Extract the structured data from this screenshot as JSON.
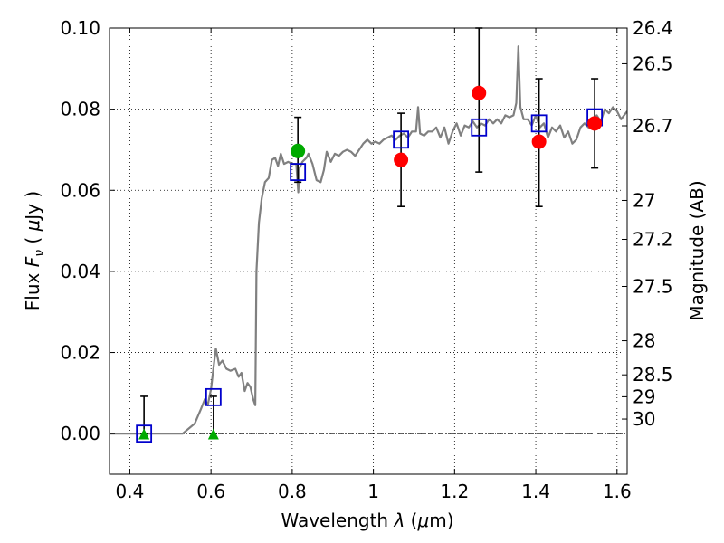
{
  "chart_data": {
    "type": "scatter",
    "x_axis": {
      "label_prefix": "Wavelength  ",
      "label_symbol": "λ",
      "label_suffix": " (",
      "label_mu": "μ",
      "label_unit": "m)",
      "range": [
        0.35,
        1.625
      ],
      "ticks": [
        0.4,
        0.6,
        0.8,
        1.0,
        1.2,
        1.4,
        1.6
      ],
      "tick_labels": [
        "0.4",
        "0.6",
        "0.8",
        "1",
        "1.2",
        "1.4",
        "1.6"
      ]
    },
    "y_axis": {
      "label_prefix": "Flux  ",
      "label_symbol": "F",
      "label_sub": "ν",
      "label_paren_open": "  (  ",
      "label_mu": "μ",
      "label_unit": "Jy )",
      "range": [
        -0.01,
        0.1
      ],
      "ticks": [
        0.0,
        0.02,
        0.04,
        0.06,
        0.08,
        0.1
      ],
      "tick_labels": [
        "0.00",
        "0.02",
        "0.04",
        "0.06",
        "0.08",
        "0.10"
      ]
    },
    "y2_axis": {
      "label": "Magnitude (AB)",
      "ticks": [
        {
          "label": "26.4",
          "flux": 0.1
        },
        {
          "label": "26.5",
          "flux": 0.0912
        },
        {
          "label": "26.7",
          "flux": 0.0759
        },
        {
          "label": "27",
          "flux": 0.0575
        },
        {
          "label": "27.2",
          "flux": 0.0479
        },
        {
          "label": "27.5",
          "flux": 0.0363
        },
        {
          "label": "28",
          "flux": 0.0229
        },
        {
          "label": "28.5",
          "flux": 0.0145
        },
        {
          "label": "29",
          "flux": 0.0091
        },
        {
          "label": "30",
          "flux": 0.0036
        }
      ]
    },
    "grid": true,
    "zero_line": true,
    "series": [
      {
        "kind": "spectrum",
        "color": "#808080",
        "points": [
          [
            0.35,
            0.0
          ],
          [
            0.52,
            0.0
          ],
          [
            0.53,
            0.0
          ],
          [
            0.56,
            0.0025
          ],
          [
            0.575,
            0.006
          ],
          [
            0.585,
            0.0085
          ],
          [
            0.592,
            0.007
          ],
          [
            0.597,
            0.0095
          ],
          [
            0.6,
            0.011
          ],
          [
            0.607,
            0.017
          ],
          [
            0.612,
            0.021
          ],
          [
            0.62,
            0.017
          ],
          [
            0.628,
            0.018
          ],
          [
            0.638,
            0.016
          ],
          [
            0.648,
            0.0155
          ],
          [
            0.66,
            0.016
          ],
          [
            0.668,
            0.014
          ],
          [
            0.675,
            0.015
          ],
          [
            0.683,
            0.0105
          ],
          [
            0.69,
            0.0125
          ],
          [
            0.697,
            0.0115
          ],
          [
            0.704,
            0.0085
          ],
          [
            0.709,
            0.007
          ],
          [
            0.712,
            0.04
          ],
          [
            0.718,
            0.052
          ],
          [
            0.725,
            0.058
          ],
          [
            0.733,
            0.062
          ],
          [
            0.742,
            0.063
          ],
          [
            0.75,
            0.0675
          ],
          [
            0.758,
            0.068
          ],
          [
            0.765,
            0.066
          ],
          [
            0.772,
            0.069
          ],
          [
            0.78,
            0.0665
          ],
          [
            0.79,
            0.067
          ],
          [
            0.8,
            0.0665
          ],
          [
            0.81,
            0.0665
          ],
          [
            0.815,
            0.0595
          ],
          [
            0.818,
            0.0655
          ],
          [
            0.825,
            0.067
          ],
          [
            0.835,
            0.068
          ],
          [
            0.84,
            0.069
          ],
          [
            0.85,
            0.0665
          ],
          [
            0.86,
            0.0625
          ],
          [
            0.87,
            0.062
          ],
          [
            0.878,
            0.065
          ],
          [
            0.885,
            0.0695
          ],
          [
            0.895,
            0.067
          ],
          [
            0.905,
            0.069
          ],
          [
            0.915,
            0.0685
          ],
          [
            0.925,
            0.0695
          ],
          [
            0.935,
            0.07
          ],
          [
            0.945,
            0.0695
          ],
          [
            0.955,
            0.0685
          ],
          [
            0.965,
            0.07
          ],
          [
            0.975,
            0.0715
          ],
          [
            0.985,
            0.0725
          ],
          [
            0.995,
            0.0715
          ],
          [
            1.005,
            0.072
          ],
          [
            1.015,
            0.0715
          ],
          [
            1.025,
            0.0725
          ],
          [
            1.035,
            0.073
          ],
          [
            1.045,
            0.0735
          ],
          [
            1.055,
            0.0725
          ],
          [
            1.065,
            0.0735
          ],
          [
            1.075,
            0.074
          ],
          [
            1.085,
            0.073
          ],
          [
            1.095,
            0.0745
          ],
          [
            1.105,
            0.0745
          ],
          [
            1.11,
            0.0805
          ],
          [
            1.115,
            0.074
          ],
          [
            1.125,
            0.0735
          ],
          [
            1.135,
            0.0745
          ],
          [
            1.145,
            0.0745
          ],
          [
            1.155,
            0.0755
          ],
          [
            1.165,
            0.073
          ],
          [
            1.175,
            0.0755
          ],
          [
            1.185,
            0.0715
          ],
          [
            1.195,
            0.0745
          ],
          [
            1.205,
            0.0765
          ],
          [
            1.215,
            0.0735
          ],
          [
            1.225,
            0.076
          ],
          [
            1.235,
            0.0755
          ],
          [
            1.245,
            0.077
          ],
          [
            1.255,
            0.0755
          ],
          [
            1.265,
            0.0765
          ],
          [
            1.275,
            0.076
          ],
          [
            1.285,
            0.0775
          ],
          [
            1.295,
            0.0765
          ],
          [
            1.305,
            0.0775
          ],
          [
            1.315,
            0.0765
          ],
          [
            1.325,
            0.0785
          ],
          [
            1.335,
            0.078
          ],
          [
            1.345,
            0.0785
          ],
          [
            1.352,
            0.0815
          ],
          [
            1.357,
            0.0955
          ],
          [
            1.362,
            0.0805
          ],
          [
            1.37,
            0.0775
          ],
          [
            1.38,
            0.0775
          ],
          [
            1.39,
            0.076
          ],
          [
            1.4,
            0.0785
          ],
          [
            1.41,
            0.0755
          ],
          [
            1.42,
            0.0765
          ],
          [
            1.43,
            0.073
          ],
          [
            1.44,
            0.0755
          ],
          [
            1.45,
            0.0745
          ],
          [
            1.46,
            0.076
          ],
          [
            1.47,
            0.073
          ],
          [
            1.48,
            0.0745
          ],
          [
            1.49,
            0.0715
          ],
          [
            1.5,
            0.0725
          ],
          [
            1.51,
            0.0755
          ],
          [
            1.52,
            0.0765
          ],
          [
            1.53,
            0.0755
          ],
          [
            1.54,
            0.077
          ],
          [
            1.55,
            0.0785
          ],
          [
            1.56,
            0.077
          ],
          [
            1.57,
            0.08
          ],
          [
            1.58,
            0.079
          ],
          [
            1.59,
            0.0805
          ],
          [
            1.6,
            0.0795
          ],
          [
            1.61,
            0.0775
          ],
          [
            1.625,
            0.0795
          ]
        ]
      },
      {
        "kind": "model-photometry",
        "marker": "open-square",
        "color": "#0000cc",
        "points": [
          [
            0.435,
            0.0
          ],
          [
            0.606,
            0.009
          ],
          [
            0.814,
            0.0645
          ],
          [
            1.068,
            0.0725
          ],
          [
            1.26,
            0.0755
          ],
          [
            1.408,
            0.0765
          ],
          [
            1.545,
            0.078
          ]
        ]
      },
      {
        "kind": "observed-detections",
        "marker": "filled-circle",
        "color": "#ff0000",
        "points": [
          [
            1.068,
            0.0675
          ],
          [
            1.26,
            0.084
          ],
          [
            1.408,
            0.072
          ],
          [
            1.545,
            0.0765
          ]
        ]
      },
      {
        "kind": "observed-green",
        "marker": "filled-circle",
        "color": "#00aa00",
        "points": [
          [
            0.814,
            0.0697
          ]
        ]
      },
      {
        "kind": "upper-limits",
        "marker": "filled-triangle",
        "color": "#00aa00",
        "points": [
          [
            0.435,
            -0.0003
          ],
          [
            0.606,
            -0.0003
          ]
        ]
      },
      {
        "kind": "error-bars",
        "color": "#000000",
        "bars": [
          {
            "x": 0.435,
            "low": 0.0,
            "high": 0.0092
          },
          {
            "x": 0.606,
            "low": 0.0,
            "high": 0.0092
          },
          {
            "x": 0.814,
            "low": 0.062,
            "high": 0.078
          },
          {
            "x": 1.068,
            "low": 0.056,
            "high": 0.079
          },
          {
            "x": 1.26,
            "low": 0.0645,
            "high": 0.1
          },
          {
            "x": 1.408,
            "low": 0.056,
            "high": 0.0875
          },
          {
            "x": 1.545,
            "low": 0.0655,
            "high": 0.0875
          }
        ]
      }
    ]
  }
}
